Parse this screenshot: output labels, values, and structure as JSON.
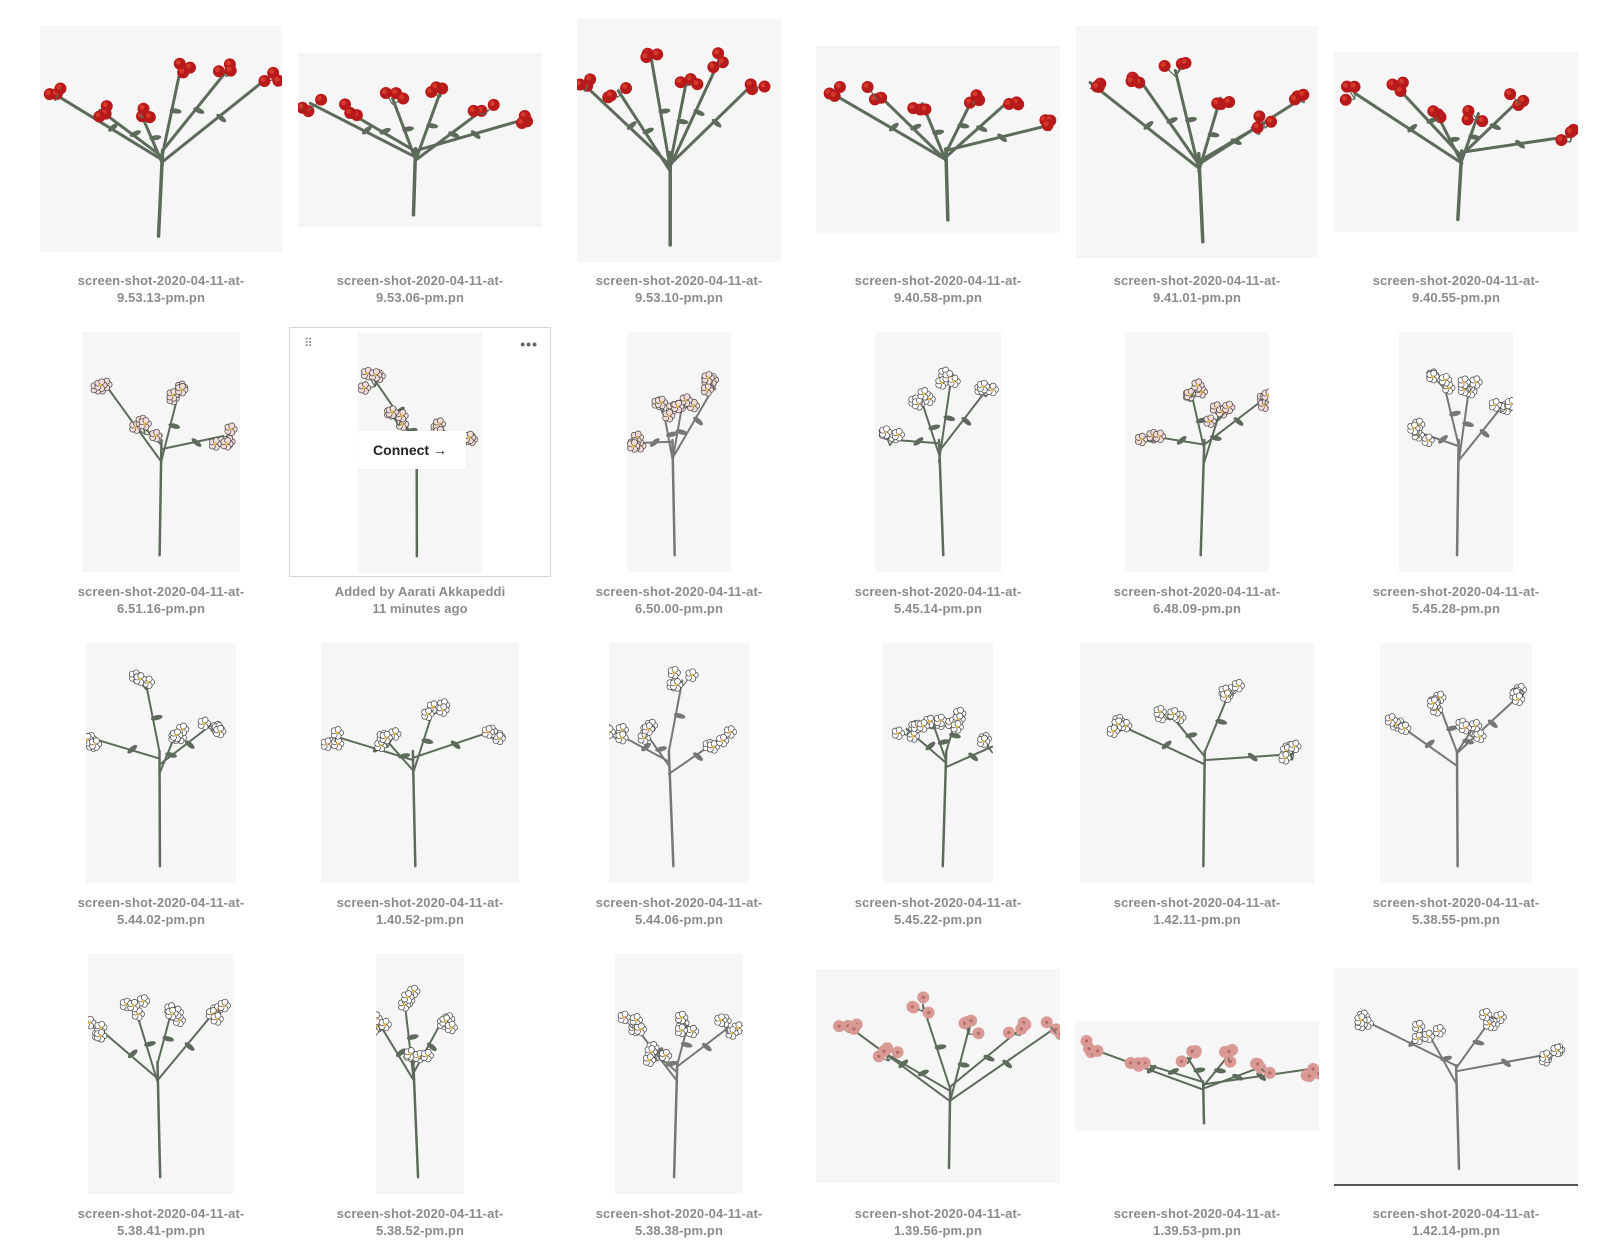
{
  "colors": {
    "canvas": "#f6f6f6",
    "stem_green": "#5c6b5a",
    "stem_gray": "#777777",
    "red_flower": "#b8191b",
    "pink_flower": "#d99a95",
    "white_flower": "#ffffff",
    "blush_flower": "#f3dcd8"
  },
  "blocks": [
    {
      "name": "screen-shot-2020-04-11-at-9.53.13-pm",
      "caption1": "screen-shot-2020-04-11-at-",
      "caption2": "9.53.13-pm.pn",
      "style": "red"
    },
    {
      "name": "screen-shot-2020-04-11-at-9.53.06-pm",
      "caption1": "screen-shot-2020-04-11-at-",
      "caption2": "9.53.06-pm.pn",
      "style": "red"
    },
    {
      "name": "screen-shot-2020-04-11-at-9.53.10-pm",
      "caption1": "screen-shot-2020-04-11-at-",
      "caption2": "9.53.10-pm.pn",
      "style": "red"
    },
    {
      "name": "screen-shot-2020-04-11-at-9.40.58-pm",
      "caption1": "screen-shot-2020-04-11-at-",
      "caption2": "9.40.58-pm.pn",
      "style": "red"
    },
    {
      "name": "screen-shot-2020-04-11-at-9.41.01-pm",
      "caption1": "screen-shot-2020-04-11-at-",
      "caption2": "9.41.01-pm.pn",
      "style": "red"
    },
    {
      "name": "screen-shot-2020-04-11-at-9.40.55-pm",
      "caption1": "screen-shot-2020-04-11-at-",
      "caption2": "9.40.55-pm.pn",
      "style": "red"
    },
    {
      "name": "screen-shot-2020-04-11-at-6.51.16-pm",
      "caption1": "screen-shot-2020-04-11-at-",
      "caption2": "6.51.16-pm.pn",
      "style": "blush"
    },
    {
      "name": "added-by-aarati-akkapeddi",
      "caption1": "Added by Aarati Akkapeddi",
      "caption2": "11 minutes ago",
      "style": "blush",
      "hover": true,
      "connect_label": "Connect →",
      "handle_glyph": "⠿",
      "more_glyph": "•••"
    },
    {
      "name": "screen-shot-2020-04-11-at-6.50.00-pm",
      "caption1": "screen-shot-2020-04-11-at-",
      "caption2": "6.50.00-pm.pn",
      "style": "blush"
    },
    {
      "name": "screen-shot-2020-04-11-at-5.45.14-pm",
      "caption1": "screen-shot-2020-04-11-at-",
      "caption2": "5.45.14-pm.pn",
      "style": "white"
    },
    {
      "name": "screen-shot-2020-04-11-at-6.48.09-pm",
      "caption1": "screen-shot-2020-04-11-at-",
      "caption2": "6.48.09-pm.pn",
      "style": "blush"
    },
    {
      "name": "screen-shot-2020-04-11-at-5.45.28-pm",
      "caption1": "screen-shot-2020-04-11-at-",
      "caption2": "5.45.28-pm.pn",
      "style": "white"
    },
    {
      "name": "screen-shot-2020-04-11-at-5.44.02-pm",
      "caption1": "screen-shot-2020-04-11-at-",
      "caption2": "5.44.02-pm.pn",
      "style": "white"
    },
    {
      "name": "screen-shot-2020-04-11-at-1.40.52-pm",
      "caption1": "screen-shot-2020-04-11-at-",
      "caption2": "1.40.52-pm.pn",
      "style": "white"
    },
    {
      "name": "screen-shot-2020-04-11-at-5.44.06-pm",
      "caption1": "screen-shot-2020-04-11-at-",
      "caption2": "5.44.06-pm.pn",
      "style": "white"
    },
    {
      "name": "screen-shot-2020-04-11-at-5.45.22-pm",
      "caption1": "screen-shot-2020-04-11-at-",
      "caption2": "5.45.22-pm.pn",
      "style": "white"
    },
    {
      "name": "screen-shot-2020-04-11-at-1.42.11-pm",
      "caption1": "screen-shot-2020-04-11-at-",
      "caption2": "1.42.11-pm.pn",
      "style": "white"
    },
    {
      "name": "screen-shot-2020-04-11-at-5.38.55-pm",
      "caption1": "screen-shot-2020-04-11-at-",
      "caption2": "5.38.55-pm.pn",
      "style": "white"
    },
    {
      "name": "screen-shot-2020-04-11-at-5.38.41-pm",
      "caption1": "screen-shot-2020-04-11-at-",
      "caption2": "5.38.41-pm.pn",
      "style": "white"
    },
    {
      "name": "screen-shot-2020-04-11-at-5.38.52-pm",
      "caption1": "screen-shot-2020-04-11-at-",
      "caption2": "5.38.52-pm.pn",
      "style": "white"
    },
    {
      "name": "screen-shot-2020-04-11-at-5.38.38-pm",
      "caption1": "screen-shot-2020-04-11-at-",
      "caption2": "5.38.38-pm.pn",
      "style": "white"
    },
    {
      "name": "screen-shot-2020-04-11-at-1.39.56-pm",
      "caption1": "screen-shot-2020-04-11-at-",
      "caption2": "1.39.56-pm.pn",
      "style": "pink"
    },
    {
      "name": "screen-shot-2020-04-11-at-1.39.53-pm",
      "caption1": "screen-shot-2020-04-11-at-",
      "caption2": "1.39.53-pm.pn",
      "style": "pink"
    },
    {
      "name": "screen-shot-2020-04-11-at-1.42.14-pm",
      "caption1": "screen-shot-2020-04-11-at-",
      "caption2": "1.42.14-pm.pn",
      "style": "white"
    }
  ]
}
